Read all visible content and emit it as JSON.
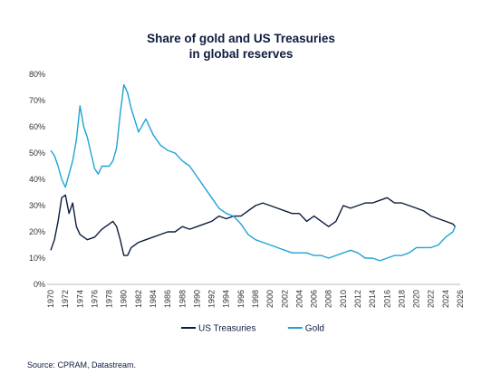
{
  "chart_data": {
    "type": "line",
    "title": "Share of gold and US Treasuries",
    "subtitle": "in global reserves",
    "xlabel": "",
    "ylabel": "",
    "xlim": [
      1969.5,
      2026
    ],
    "ylim": [
      0,
      80
    ],
    "x_ticks": [
      "1970",
      "1972",
      "1974",
      "1976",
      "1978",
      "1980",
      "1982",
      "1984",
      "1986",
      "1988",
      "1990",
      "1992",
      "1994",
      "1996",
      "1998",
      "2000",
      "2002",
      "2004",
      "2006",
      "2008",
      "2010",
      "2012",
      "2014",
      "2016",
      "2018",
      "2020",
      "2022",
      "2024",
      "2026"
    ],
    "y_ticks": [
      "0%",
      "10%",
      "20%",
      "30%",
      "40%",
      "50%",
      "60%",
      "70%",
      "80%"
    ],
    "grid": false,
    "legend_position": "bottom",
    "series": [
      {
        "name": "US Treasuries",
        "color": "#0d1b3e",
        "points": [
          [
            1970,
            13
          ],
          [
            1970.5,
            17
          ],
          [
            1971,
            24
          ],
          [
            1971.5,
            33
          ],
          [
            1972,
            34
          ],
          [
            1972.5,
            27
          ],
          [
            1973,
            31
          ],
          [
            1973.5,
            22
          ],
          [
            1974,
            19
          ],
          [
            1975,
            17
          ],
          [
            1976,
            18
          ],
          [
            1977,
            21
          ],
          [
            1978,
            23
          ],
          [
            1978.5,
            24
          ],
          [
            1979,
            22
          ],
          [
            1979.5,
            17
          ],
          [
            1980,
            11
          ],
          [
            1980.5,
            11
          ],
          [
            1981,
            14
          ],
          [
            1982,
            16
          ],
          [
            1983,
            17
          ],
          [
            1984,
            18
          ],
          [
            1985,
            19
          ],
          [
            1986,
            20
          ],
          [
            1987,
            20
          ],
          [
            1988,
            22
          ],
          [
            1989,
            21
          ],
          [
            1990,
            22
          ],
          [
            1991,
            23
          ],
          [
            1992,
            24
          ],
          [
            1993,
            26
          ],
          [
            1994,
            25
          ],
          [
            1995,
            26
          ],
          [
            1996,
            26
          ],
          [
            1997,
            28
          ],
          [
            1998,
            30
          ],
          [
            1999,
            31
          ],
          [
            2000,
            30
          ],
          [
            2001,
            29
          ],
          [
            2002,
            28
          ],
          [
            2003,
            27
          ],
          [
            2004,
            27
          ],
          [
            2005,
            24
          ],
          [
            2006,
            26
          ],
          [
            2007,
            24
          ],
          [
            2008,
            22
          ],
          [
            2009,
            24
          ],
          [
            2010,
            30
          ],
          [
            2011,
            29
          ],
          [
            2012,
            30
          ],
          [
            2013,
            31
          ],
          [
            2014,
            31
          ],
          [
            2015,
            32
          ],
          [
            2016,
            33
          ],
          [
            2017,
            31
          ],
          [
            2018,
            31
          ],
          [
            2019,
            30
          ],
          [
            2020,
            29
          ],
          [
            2021,
            28
          ],
          [
            2022,
            26
          ],
          [
            2023,
            25
          ],
          [
            2024,
            24
          ],
          [
            2025,
            23
          ],
          [
            2025.3,
            22
          ]
        ]
      },
      {
        "name": "Gold",
        "color": "#1fa3d5",
        "points": [
          [
            1970,
            51
          ],
          [
            1970.5,
            49
          ],
          [
            1971,
            45
          ],
          [
            1971.5,
            40
          ],
          [
            1972,
            37
          ],
          [
            1972.5,
            42
          ],
          [
            1973,
            47
          ],
          [
            1973.5,
            55
          ],
          [
            1974,
            68
          ],
          [
            1974.5,
            60
          ],
          [
            1975,
            56
          ],
          [
            1975.5,
            50
          ],
          [
            1976,
            44
          ],
          [
            1976.5,
            42
          ],
          [
            1977,
            45
          ],
          [
            1978,
            45
          ],
          [
            1978.5,
            47
          ],
          [
            1979,
            52
          ],
          [
            1979.5,
            65
          ],
          [
            1980,
            76
          ],
          [
            1980.5,
            73
          ],
          [
            1981,
            67
          ],
          [
            1982,
            58
          ],
          [
            1983,
            63
          ],
          [
            1984,
            57
          ],
          [
            1985,
            53
          ],
          [
            1986,
            51
          ],
          [
            1987,
            50
          ],
          [
            1988,
            47
          ],
          [
            1989,
            45
          ],
          [
            1990,
            41
          ],
          [
            1991,
            37
          ],
          [
            1992,
            33
          ],
          [
            1993,
            29
          ],
          [
            1994,
            27
          ],
          [
            1995,
            26
          ],
          [
            1996,
            23
          ],
          [
            1997,
            19
          ],
          [
            1998,
            17
          ],
          [
            1999,
            16
          ],
          [
            2000,
            15
          ],
          [
            2001,
            14
          ],
          [
            2002,
            13
          ],
          [
            2003,
            12
          ],
          [
            2004,
            12
          ],
          [
            2005,
            12
          ],
          [
            2006,
            11
          ],
          [
            2007,
            11
          ],
          [
            2008,
            10
          ],
          [
            2009,
            11
          ],
          [
            2010,
            12
          ],
          [
            2011,
            13
          ],
          [
            2012,
            12
          ],
          [
            2013,
            10
          ],
          [
            2014,
            10
          ],
          [
            2015,
            9
          ],
          [
            2016,
            10
          ],
          [
            2017,
            11
          ],
          [
            2018,
            11
          ],
          [
            2019,
            12
          ],
          [
            2020,
            14
          ],
          [
            2021,
            14
          ],
          [
            2022,
            14
          ],
          [
            2023,
            15
          ],
          [
            2024,
            18
          ],
          [
            2025,
            20
          ],
          [
            2025.3,
            22
          ]
        ]
      }
    ]
  },
  "legend": [
    "US Treasuries",
    "Gold"
  ],
  "source": "Source: CPRAM, Datastream."
}
